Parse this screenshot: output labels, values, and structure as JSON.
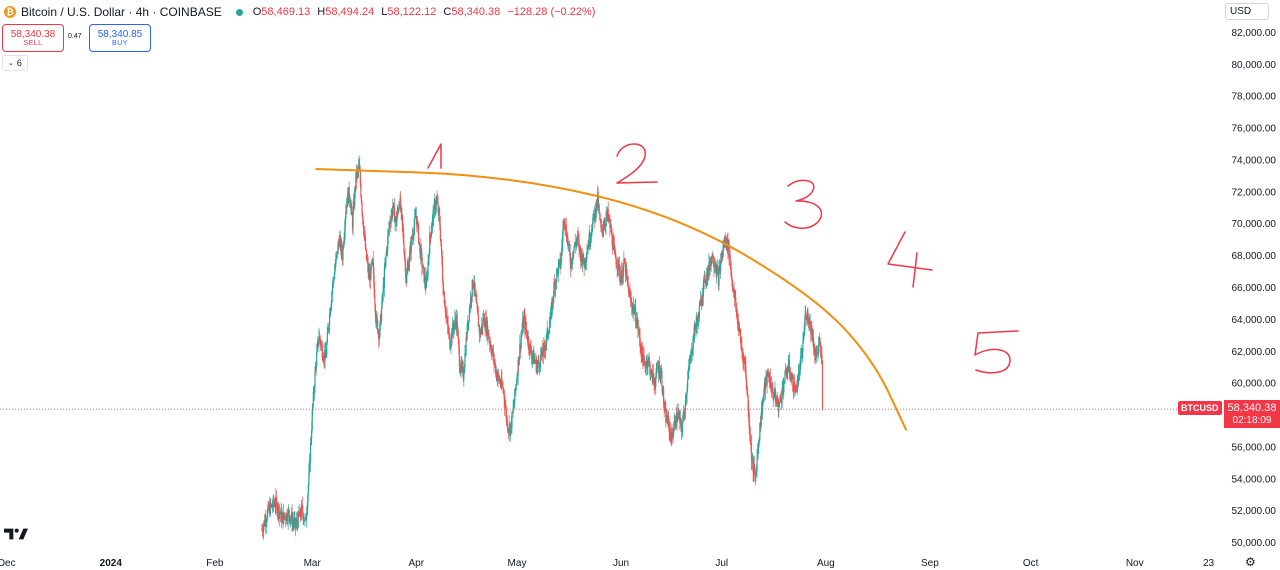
{
  "header": {
    "symbol_title": "Bitcoin / U.S. Dollar · 4h · COINBASE",
    "coin_icon_glyph": "₿",
    "ohlc": [
      {
        "label": "O",
        "value": "58,469.13"
      },
      {
        "label": "H",
        "value": "58,494.24"
      },
      {
        "label": "L",
        "value": "58,122.12"
      },
      {
        "label": "C",
        "value": "58,340.38"
      }
    ],
    "change": "−128.28 (−0.22%)",
    "status_color": "#26a69a"
  },
  "trade": {
    "sell_price": "58,340.38",
    "sell_label": "SELL",
    "buy_price": "58,340.85",
    "buy_label": "BUY",
    "spread": "0.47"
  },
  "indicators_toggle": "6",
  "currency": "USD",
  "last_price": {
    "symbol": "BTCUSD",
    "price": "58,340.38",
    "countdown": "02:18:09",
    "value": 58340.38
  },
  "colors": {
    "up": "#26a69a",
    "down": "#ef5350",
    "annotation": "#f28f0e",
    "handwriting": "#f23645",
    "last_price": "#f23645"
  },
  "chart_data": {
    "type": "candlestick",
    "interval": "4h",
    "ylim": [
      49500,
      82500
    ],
    "yticks": [
      "50,000.00",
      "52,000.00",
      "54,000.00",
      "56,000.00",
      "58,000.00",
      "60,000.00",
      "62,000.00",
      "64,000.00",
      "66,000.00",
      "68,000.00",
      "70,000.00",
      "72,000.00",
      "74,000.00",
      "76,000.00",
      "78,000.00",
      "80,000.00",
      "82,000.00"
    ],
    "xticks": [
      {
        "label": "Dec",
        "day": 0
      },
      {
        "label": "2024",
        "day": 31,
        "bold": true
      },
      {
        "label": "Feb",
        "day": 62
      },
      {
        "label": "Mar",
        "day": 91
      },
      {
        "label": "Apr",
        "day": 122
      },
      {
        "label": "May",
        "day": 152
      },
      {
        "label": "Jun",
        "day": 183
      },
      {
        "label": "Jul",
        "day": 213
      },
      {
        "label": "Aug",
        "day": 244
      },
      {
        "label": "Sep",
        "day": 275
      },
      {
        "label": "Oct",
        "day": 305
      },
      {
        "label": "Nov",
        "day": 336
      },
      {
        "label": "23",
        "day": 358
      }
    ],
    "xdomain_days": [
      -2,
      362
    ],
    "price_path": [
      [
        76,
        50800
      ],
      [
        78,
        52000
      ],
      [
        80,
        52500
      ],
      [
        82,
        51500
      ],
      [
        84,
        51800
      ],
      [
        86,
        51000
      ],
      [
        88,
        52000
      ],
      [
        89,
        51200
      ],
      [
        90,
        54000
      ],
      [
        91,
        58000
      ],
      [
        92,
        61000
      ],
      [
        93,
        63000
      ],
      [
        94,
        62000
      ],
      [
        95,
        61500
      ],
      [
        96,
        64000
      ],
      [
        97,
        66000
      ],
      [
        98,
        67500
      ],
      [
        99,
        69000
      ],
      [
        100,
        68000
      ],
      [
        101,
        71000
      ],
      [
        102,
        72000
      ],
      [
        103,
        70000
      ],
      [
        104,
        72800
      ],
      [
        105,
        73500
      ],
      [
        106,
        70500
      ],
      [
        107,
        68000
      ],
      [
        108,
        66500
      ],
      [
        109,
        67500
      ],
      [
        110,
        64000
      ],
      [
        111,
        63000
      ],
      [
        112,
        65500
      ],
      [
        113,
        68000
      ],
      [
        114,
        70000
      ],
      [
        115,
        71000
      ],
      [
        116,
        70000
      ],
      [
        117,
        71500
      ],
      [
        118,
        69500
      ],
      [
        119,
        66500
      ],
      [
        120,
        68000
      ],
      [
        121,
        69500
      ],
      [
        122,
        70500
      ],
      [
        123,
        68500
      ],
      [
        124,
        67000
      ],
      [
        125,
        66000
      ],
      [
        126,
        69000
      ],
      [
        127,
        70500
      ],
      [
        128,
        71500
      ],
      [
        129,
        70000
      ],
      [
        130,
        66000
      ],
      [
        131,
        64000
      ],
      [
        132,
        62500
      ],
      [
        133,
        63500
      ],
      [
        134,
        64000
      ],
      [
        135,
        61000
      ],
      [
        136,
        60500
      ],
      [
        137,
        63000
      ],
      [
        138,
        65000
      ],
      [
        139,
        66500
      ],
      [
        140,
        64500
      ],
      [
        141,
        63000
      ],
      [
        142,
        64000
      ],
      [
        143,
        63500
      ],
      [
        144,
        62500
      ],
      [
        145,
        61500
      ],
      [
        146,
        60500
      ],
      [
        147,
        60000
      ],
      [
        148,
        59500
      ],
      [
        149,
        57500
      ],
      [
        150,
        57000
      ],
      [
        151,
        58500
      ],
      [
        152,
        60500
      ],
      [
        153,
        62500
      ],
      [
        154,
        64000
      ],
      [
        155,
        63000
      ],
      [
        156,
        62000
      ],
      [
        157,
        61500
      ],
      [
        158,
        61000
      ],
      [
        159,
        61500
      ],
      [
        160,
        62000
      ],
      [
        161,
        63000
      ],
      [
        162,
        64000
      ],
      [
        163,
        66000
      ],
      [
        164,
        67000
      ],
      [
        165,
        67500
      ],
      [
        166,
        70500
      ],
      [
        167,
        69000
      ],
      [
        168,
        67500
      ],
      [
        169,
        68500
      ],
      [
        170,
        69000
      ],
      [
        171,
        68000
      ],
      [
        172,
        67500
      ],
      [
        173,
        68500
      ],
      [
        174,
        69500
      ],
      [
        175,
        70500
      ],
      [
        176,
        71500
      ],
      [
        177,
        69500
      ],
      [
        178,
        70000
      ],
      [
        179,
        70500
      ],
      [
        180,
        69500
      ],
      [
        181,
        68000
      ],
      [
        182,
        67500
      ],
      [
        183,
        66500
      ],
      [
        184,
        67500
      ],
      [
        185,
        66000
      ],
      [
        186,
        65000
      ],
      [
        187,
        64500
      ],
      [
        188,
        63500
      ],
      [
        189,
        62000
      ],
      [
        190,
        61000
      ],
      [
        191,
        61500
      ],
      [
        192,
        60500
      ],
      [
        193,
        60000
      ],
      [
        194,
        61000
      ],
      [
        195,
        60500
      ],
      [
        196,
        58000
      ],
      [
        197,
        57500
      ],
      [
        198,
        56500
      ],
      [
        199,
        57500
      ],
      [
        200,
        58000
      ],
      [
        201,
        57000
      ],
      [
        202,
        58500
      ],
      [
        203,
        60500
      ],
      [
        204,
        62000
      ],
      [
        205,
        63500
      ],
      [
        206,
        64000
      ],
      [
        207,
        65500
      ],
      [
        208,
        66500
      ],
      [
        209,
        67000
      ],
      [
        210,
        68000
      ],
      [
        211,
        67500
      ],
      [
        212,
        66500
      ],
      [
        213,
        68000
      ],
      [
        214,
        69000
      ],
      [
        215,
        68500
      ],
      [
        216,
        66500
      ],
      [
        217,
        65000
      ],
      [
        218,
        63500
      ],
      [
        219,
        62000
      ],
      [
        220,
        61000
      ],
      [
        221,
        58000
      ],
      [
        222,
        55000
      ],
      [
        223,
        54000
      ],
      [
        224,
        56500
      ],
      [
        225,
        58500
      ],
      [
        226,
        60000
      ],
      [
        227,
        60500
      ],
      [
        228,
        59500
      ],
      [
        229,
        59000
      ],
      [
        230,
        58500
      ],
      [
        231,
        59500
      ],
      [
        232,
        60500
      ],
      [
        233,
        61000
      ],
      [
        234,
        60000
      ],
      [
        235,
        59500
      ],
      [
        236,
        60500
      ],
      [
        237,
        62000
      ],
      [
        238,
        64500
      ],
      [
        239,
        64000
      ],
      [
        240,
        63000
      ],
      [
        241,
        61500
      ],
      [
        242,
        62500
      ],
      [
        243,
        61000
      ]
    ],
    "annotations": {
      "curve": {
        "type": "arc",
        "color": "#f28f0e",
        "points": [
          [
            92,
            73400
          ],
          [
            150,
            73000
          ],
          [
            200,
            70500
          ],
          [
            240,
            65500
          ],
          [
            258,
            61500
          ],
          [
            268,
            57000
          ]
        ]
      },
      "labels": [
        "1",
        "2",
        "3",
        "4",
        "5"
      ]
    }
  }
}
